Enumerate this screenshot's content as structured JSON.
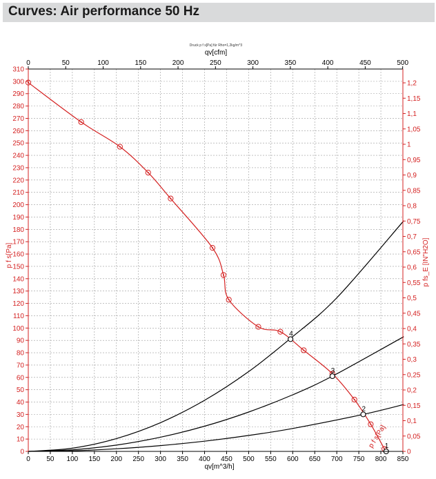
{
  "header": {
    "title": "Curves: Air performance 50 Hz"
  },
  "chart_data": {
    "type": "line",
    "title": "Druck p f s[Pa] für Rho=1,2kg/m^3",
    "x_bottom": {
      "label": "qv[m^3/h]",
      "range": [
        0,
        850
      ],
      "ticks": [
        0,
        50,
        100,
        150,
        200,
        250,
        300,
        350,
        400,
        450,
        500,
        550,
        600,
        650,
        700,
        750,
        800,
        850
      ]
    },
    "x_top": {
      "label": "qv[cfm]",
      "range": [
        0,
        500.3
      ],
      "ticks": [
        0,
        50,
        100,
        150,
        200,
        250,
        300,
        350,
        400,
        450,
        500
      ]
    },
    "y_left": {
      "label": "p f s[Pa]",
      "range": [
        0,
        310
      ],
      "ticks": [
        0,
        10,
        20,
        30,
        40,
        50,
        60,
        70,
        80,
        90,
        100,
        110,
        120,
        130,
        140,
        150,
        160,
        170,
        180,
        190,
        200,
        210,
        220,
        230,
        240,
        250,
        260,
        270,
        280,
        290,
        300,
        310
      ]
    },
    "y_right": {
      "label": "p fs_E [IN\"H2O]",
      "range": [
        0,
        1.245
      ],
      "ticks": [
        "0",
        "0,05",
        "0,1",
        "0,15",
        "0,2",
        "0,25",
        "0,3",
        "0,35",
        "0,4",
        "0,45",
        "0,5",
        "0,55",
        "0,6",
        "0,65",
        "0,7",
        "0,75",
        "0,8",
        "0,85",
        "0,9",
        "0,95",
        "1",
        "1,05",
        "1,1",
        "1,15",
        "1,2"
      ]
    },
    "grid": true,
    "series": [
      {
        "name": "p f s[Pa]",
        "color": "#d42020",
        "x": [
          0,
          120,
          208,
          272,
          323,
          418,
          443,
          455,
          522,
          572,
          625,
          690,
          740,
          777,
          808
        ],
        "y": [
          299,
          267,
          247,
          226,
          205,
          165,
          143,
          123,
          101,
          97,
          82,
          63,
          42,
          22,
          2
        ],
        "markers": true
      },
      {
        "color": "#000000",
        "x": [
          0,
          100,
          200,
          300,
          400,
          500,
          595,
          700,
          852
        ],
        "y": [
          0,
          2.6,
          10.4,
          23.3,
          41.4,
          64.7,
          91.6,
          124.5,
          187
        ],
        "markers": false
      },
      {
        "color": "#000000",
        "x": [
          0,
          100,
          200,
          300,
          400,
          500,
          600,
          690,
          852
        ],
        "y": [
          0,
          1.3,
          5.1,
          11.5,
          20.4,
          31.9,
          45.9,
          61,
          93
        ],
        "markers": false
      },
      {
        "color": "#000000",
        "x": [
          0,
          100,
          200,
          300,
          400,
          500,
          600,
          760,
          852
        ],
        "y": [
          0,
          0.5,
          2.1,
          4.7,
          8.3,
          12.9,
          18.6,
          30,
          38
        ],
        "markers": false
      }
    ],
    "operating_points": [
      {
        "label": "1",
        "x": 812,
        "y": 0
      },
      {
        "label": "2",
        "x": 760,
        "y": 30
      },
      {
        "label": "3",
        "x": 690,
        "y": 61
      },
      {
        "label": "4",
        "x": 595,
        "y": 91
      }
    ],
    "curve_annotation": "p f s[Pa]"
  }
}
